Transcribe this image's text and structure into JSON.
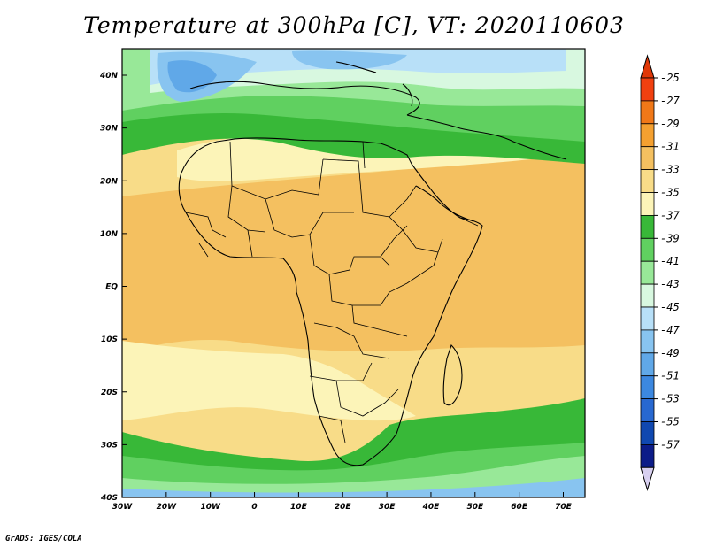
{
  "title": "Temperature at 300hPa [C], VT: 2020110603",
  "credit": "GrADS: IGES/COLA",
  "lat_ticks": [
    "40N",
    "30N",
    "20N",
    "10N",
    "EQ",
    "10S",
    "20S",
    "30S",
    "40S"
  ],
  "lon_ticks": [
    "30W",
    "20W",
    "10W",
    "0",
    "10E",
    "20E",
    "30E",
    "40E",
    "50E",
    "60E",
    "70E"
  ],
  "colorbar": {
    "labels": [
      "-25",
      "-27",
      "-29",
      "-31",
      "-33",
      "-35",
      "-37",
      "-39",
      "-41",
      "-43",
      "-45",
      "-47",
      "-49",
      "-51",
      "-53",
      "-55",
      "-57"
    ],
    "colors": [
      "#f04010",
      "#f07818",
      "#f4a030",
      "#f4c060",
      "#f8dc88",
      "#fcf4b8",
      "#38b838",
      "#60d060",
      "#98e898",
      "#d8f8e0",
      "#b8e0f8",
      "#88c4f0",
      "#60a8e8",
      "#3c88e0",
      "#2868d0",
      "#1048b0",
      "#0c1c88",
      "#101060"
    ],
    "top_arrow_color": "#e03808",
    "bottom_arrow_color": "#d8d0f0"
  },
  "map_layers": {
    "ocean_base": "#f8dc88",
    "warm_band": "#f4c060",
    "cool_band_light": "#fcf4b8",
    "green_band": "#60d060",
    "green_dark": "#38b838",
    "pale_green": "#98e898",
    "mint": "#d8f8e0",
    "blue_light": "#b8e0f8",
    "blue_mid": "#88c4f0",
    "blue_deep": "#60a8e8"
  }
}
